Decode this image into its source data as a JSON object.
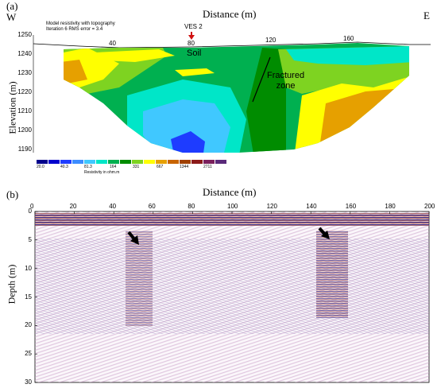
{
  "panel_a": {
    "label": "(a)",
    "west": "W",
    "east": "E",
    "x_title": "Distance (m)",
    "y_title": "Elevation (m)",
    "info_line1": "Model resistivity with topography",
    "info_line2": "Iteration 6 RMS error = 3.4",
    "ves_label": "VES 2",
    "x_ticks": [
      "40",
      "80",
      "120",
      "160"
    ],
    "y_ticks": [
      "1250",
      "1240",
      "1230",
      "1220",
      "1210",
      "1200",
      "1190"
    ],
    "soil_label": "Soil",
    "fracture_line1": "Fractured",
    "fracture_line2": "zone",
    "legend_values": [
      "20.0",
      "40.3",
      "81.3",
      "164",
      "331",
      "667",
      "1344",
      "2711"
    ],
    "legend_title": "Resistivity in ohm.m",
    "legend_colors": [
      "#00008b",
      "#0000cd",
      "#1e3cff",
      "#3c8cff",
      "#40c8ff",
      "#00e6c8",
      "#00b050",
      "#008c00",
      "#7ed321",
      "#ffff00",
      "#e6a000",
      "#c86400",
      "#a04000",
      "#8b1a1a",
      "#7a1f5c",
      "#5a2a7a"
    ]
  },
  "panel_b": {
    "label": "(b)",
    "x_title": "Distance (m)",
    "y_title": "Depth (m)",
    "x_ticks": [
      "0",
      "20",
      "40",
      "60",
      "80",
      "100",
      "120",
      "140",
      "160",
      "180",
      "200"
    ],
    "y_ticks": [
      "0",
      "5",
      "10",
      "15",
      "20",
      "25",
      "30"
    ]
  }
}
